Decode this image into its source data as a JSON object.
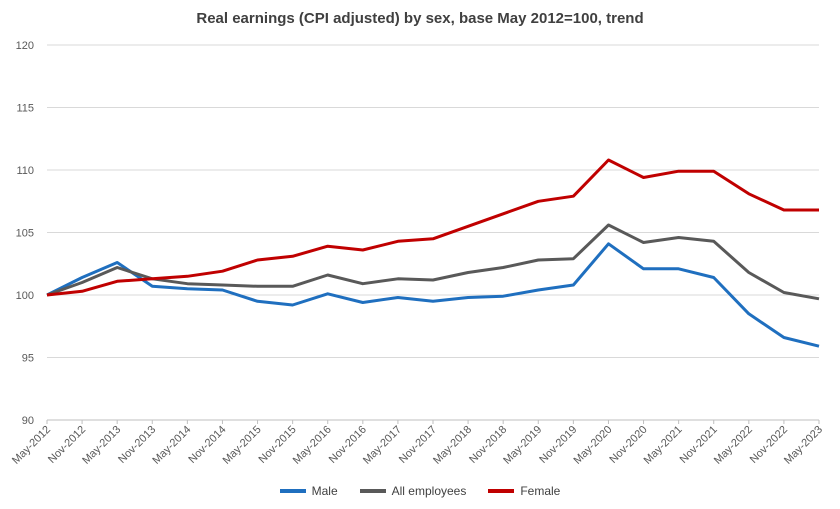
{
  "chart_data": {
    "type": "line",
    "title": "Real earnings (CPI adjusted) by sex, base May 2012=100, trend",
    "xlabel": "",
    "ylabel": "",
    "ylim": [
      90,
      120
    ],
    "yticks": [
      90,
      95,
      100,
      105,
      110,
      115,
      120
    ],
    "grid": true,
    "legend_position": "bottom",
    "x": [
      "May-2012",
      "Nov-2012",
      "May-2013",
      "Nov-2013",
      "May-2014",
      "Nov-2014",
      "May-2015",
      "Nov-2015",
      "May-2016",
      "Nov-2016",
      "May-2017",
      "Nov-2017",
      "May-2018",
      "Nov-2018",
      "May-2019",
      "Nov-2019",
      "May-2020",
      "Nov-2020",
      "May-2021",
      "Nov-2021",
      "May-2022",
      "Nov-2022",
      "May-2023"
    ],
    "series": [
      {
        "name": "Male",
        "color": "#1f6fbf",
        "values": [
          100.0,
          101.4,
          102.6,
          100.7,
          100.5,
          100.4,
          99.5,
          99.2,
          100.1,
          99.4,
          99.8,
          99.5,
          99.8,
          99.9,
          100.4,
          100.8,
          104.1,
          102.1,
          102.1,
          101.4,
          98.5,
          96.6,
          95.9
        ]
      },
      {
        "name": "All employees",
        "color": "#595959",
        "values": [
          100.0,
          101.0,
          102.2,
          101.3,
          100.9,
          100.8,
          100.7,
          100.7,
          101.6,
          100.9,
          101.3,
          101.2,
          101.8,
          102.2,
          102.8,
          102.9,
          105.6,
          104.2,
          104.6,
          104.3,
          101.8,
          100.2,
          99.7
        ]
      },
      {
        "name": "Female",
        "color": "#c00000",
        "values": [
          100.0,
          100.3,
          101.1,
          101.3,
          101.5,
          101.9,
          102.8,
          103.1,
          103.9,
          103.6,
          104.3,
          104.5,
          105.5,
          106.5,
          107.5,
          107.9,
          110.8,
          109.4,
          109.9,
          109.9,
          108.1,
          106.8,
          106.8
        ]
      }
    ]
  }
}
